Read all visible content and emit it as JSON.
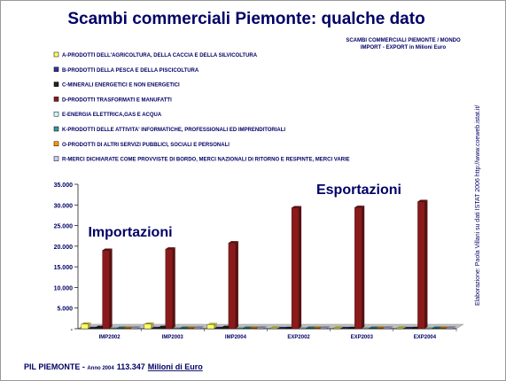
{
  "chart_data": {
    "type": "bar",
    "title": "Scambi commerciali Piemonte: qualche dato",
    "subtitle": [
      "SCAMBI COMMERCIALI PIEMONTE / MONDO",
      "IMPORT - EXPORT  in Milioni Euro"
    ],
    "annotations": [
      "Importazioni",
      "Esportazioni"
    ],
    "source": "Elaborazione: Paola Villani su dati ISTAT 2006 http://www.coeweb.istat.it/",
    "footer": {
      "label": "PIL PIEMONTE - ",
      "year": "Anno 2004",
      "value": "113.347",
      "unit": "Milioni di Euro"
    },
    "categories": [
      "IMP2002",
      "IMP2003",
      "IMP2004",
      "EXP2002",
      "EXP2003",
      "EXP2004"
    ],
    "series": [
      {
        "name": "A-PRODOTTI DELL'AGRICOLTURA, DELLA CACCIA E DELLA SILVICOLTURA",
        "color": "#ffff66",
        "values": [
          1100,
          1100,
          1000,
          200,
          200,
          200
        ]
      },
      {
        "name": "B-PRODOTTI DELLA PESCA E DELLA PISCICOLTURA",
        "color": "#333399",
        "values": [
          50,
          50,
          50,
          20,
          20,
          20
        ]
      },
      {
        "name": "C-MINERALI ENERGETICI E NON ENERGETICI",
        "color": "#222222",
        "values": [
          300,
          300,
          300,
          50,
          50,
          50
        ]
      },
      {
        "name": "D-PRODOTTI TRASFORMATI E MANUFATTI",
        "color": "#8b1a1a",
        "values": [
          19000,
          19300,
          20800,
          29300,
          29400,
          30800
        ]
      },
      {
        "name": "E-ENERGIA ELETTRICA,GAS E ACQUA",
        "color": "#ccffff",
        "values": [
          50,
          50,
          50,
          20,
          20,
          20
        ]
      },
      {
        "name": "K-PRODOTTI DELLE ATTIVITA' INFORMATICHE, PROFESSIONALI ED IMPRENDITORIALI",
        "color": "#339999",
        "values": [
          100,
          100,
          100,
          100,
          100,
          100
        ]
      },
      {
        "name": "O-PRODOTTI DI ALTRI SERVIZI PUBBLICI, SOCIALI E PERSONALI",
        "color": "#ff9900",
        "values": [
          100,
          100,
          100,
          100,
          100,
          100
        ]
      },
      {
        "name": "R-MERCI DICHIARATE COME PROVVISTE DI BORDO, MERCI NAZIONALI DI RITORNO E RESPINTE, MERCI VARIE",
        "color": "#ccccff",
        "values": [
          200,
          200,
          200,
          200,
          200,
          200
        ]
      }
    ],
    "ylim": [
      0,
      35000
    ],
    "yticks": [
      {
        "value": 0,
        "label": "-"
      },
      {
        "value": 5000,
        "label": "5.000"
      },
      {
        "value": 10000,
        "label": "10.000"
      },
      {
        "value": 15000,
        "label": "15.000"
      },
      {
        "value": 20000,
        "label": "20.000"
      },
      {
        "value": 25000,
        "label": "25.000"
      },
      {
        "value": 30000,
        "label": "30.000"
      },
      {
        "value": 35000,
        "label": "35.000"
      }
    ]
  }
}
